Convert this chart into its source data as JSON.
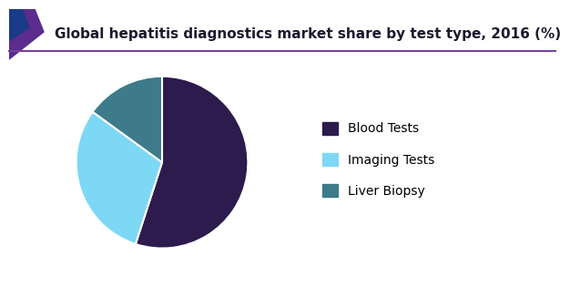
{
  "title": "Global hepatitis diagnostics market share by test type, 2016 (%)",
  "slices": [
    {
      "label": "Blood Tests",
      "value": 55,
      "color": "#2d1b4e"
    },
    {
      "label": "Imaging Tests",
      "value": 30,
      "color": "#7dd8f5"
    },
    {
      "label": "Liver Biopsy",
      "value": 15,
      "color": "#3d7a8a"
    }
  ],
  "title_fontsize": 11,
  "legend_fontsize": 10,
  "background_color": "#ffffff",
  "title_color": "#1a1a2e",
  "header_line_color": "#7b3f9e",
  "decor_purple": "#5b2c8d",
  "decor_blue": "#1a3a8a",
  "startangle": 90
}
